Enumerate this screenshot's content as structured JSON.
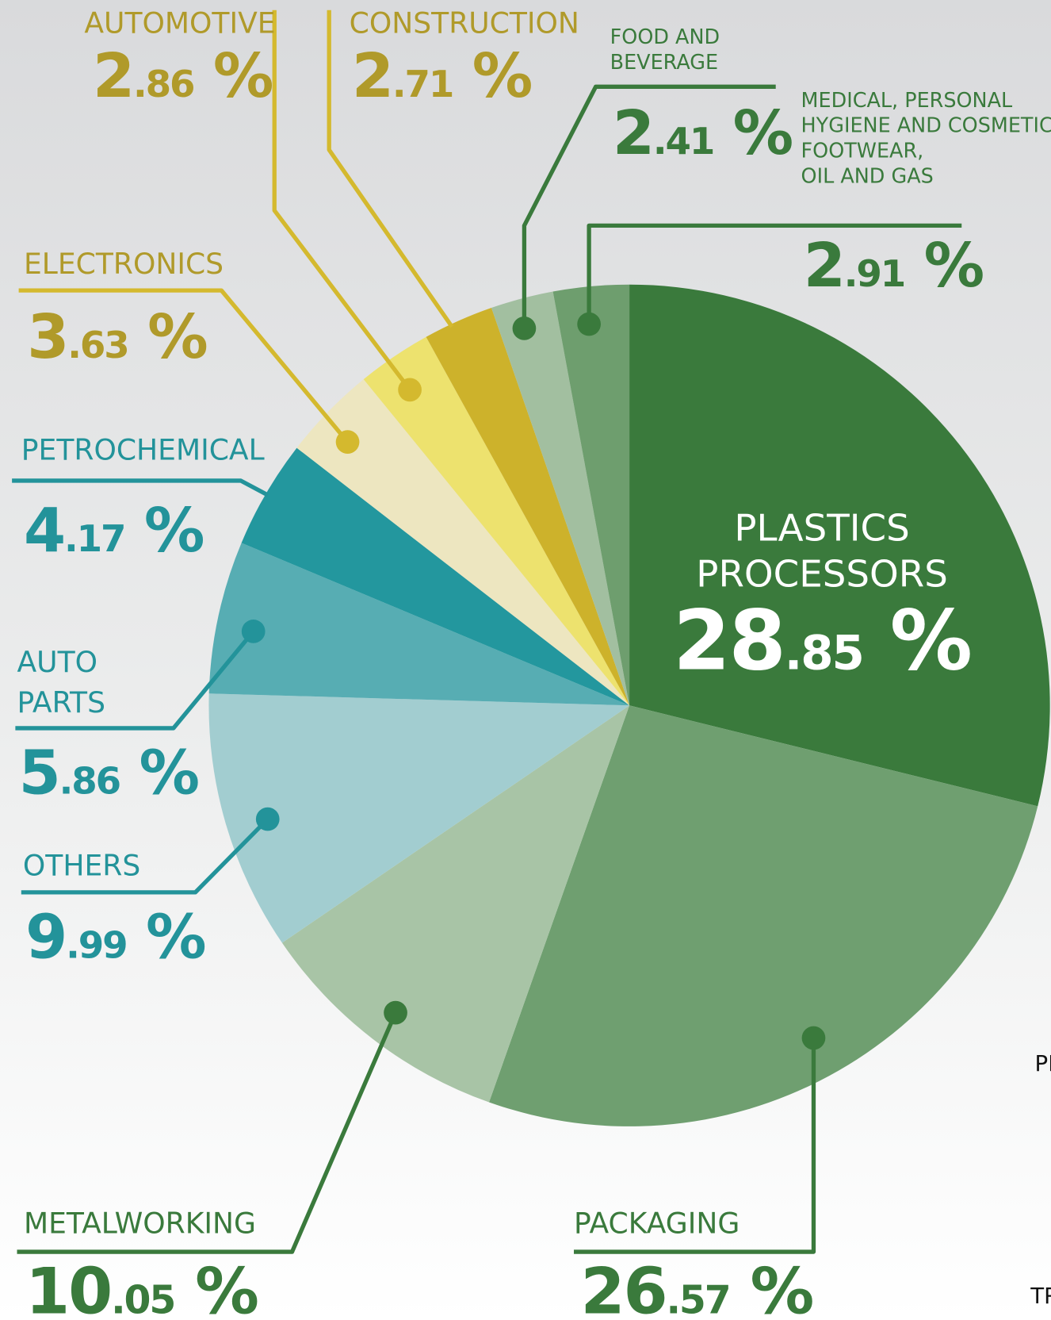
{
  "chart_data": {
    "type": "pie",
    "categories": [
      "PLASTICS\nPROCESSORS",
      "PACKAGING",
      "METALWORKING",
      "OTHERS",
      "AUTO\nPARTS",
      "PETROCHEMICAL",
      "ELECTRONICS",
      "AUTOMOTIVE",
      "CONSTRUCTION",
      "FOOD AND\nBEVERAGE",
      "MEDICAL, PERSONAL\nHYGIENE AND COSMETIC,\nFOOTWEAR,\nOIL AND GAS"
    ],
    "values": [
      28.85,
      26.57,
      10.05,
      9.99,
      5.86,
      4.17,
      3.63,
      2.86,
      2.71,
      2.41,
      2.91
    ],
    "value_labels": [
      "28.85 %",
      "26.57 %",
      "10.05 %",
      "9.99 %",
      "5.86 %",
      "4.17 %",
      "3.63 %",
      "2.86 %",
      "2.71 %",
      "2.41 %",
      "2.91 %"
    ],
    "colors": [
      "#3a7a3c",
      "#6f9f70",
      "#a8c4a6",
      "#a2cdd0",
      "#57adb3",
      "#23979e",
      "#ede6c0",
      "#ede26e",
      "#cdb22b",
      "#a2bfa0",
      "#6e9e6e"
    ],
    "annotations": [
      "PI",
      "TR"
    ]
  }
}
